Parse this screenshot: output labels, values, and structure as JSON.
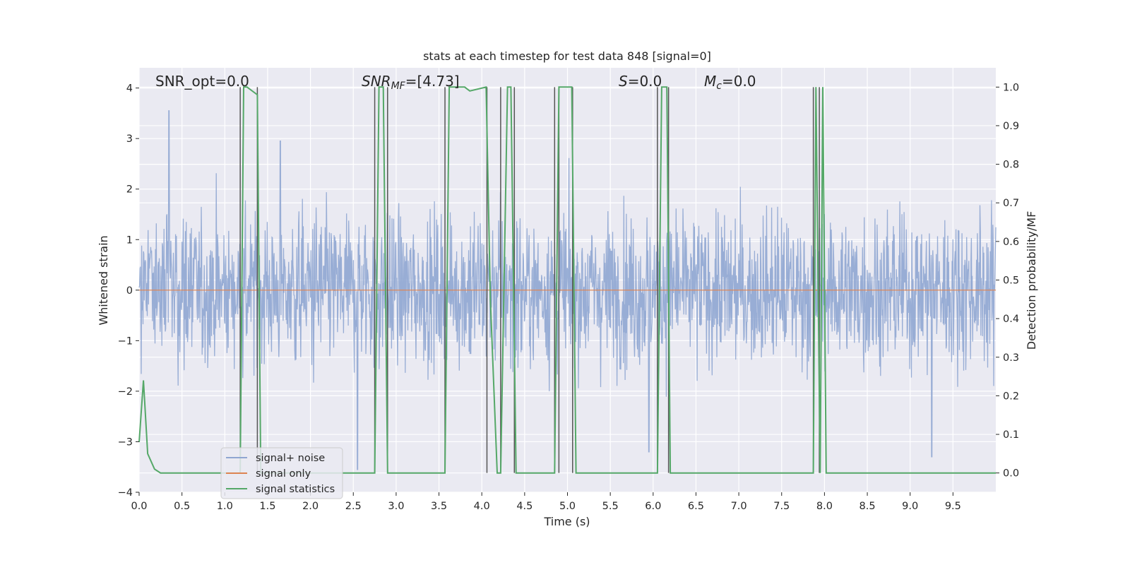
{
  "chart_data": {
    "type": "line",
    "title": "stats at each timestep for test data 848 [signal=0]",
    "xlabel": "Time (s)",
    "ylabel": "Whitened strain",
    "y2label": "Detection probability/MF",
    "xlim": [
      0,
      10
    ],
    "ylim": [
      -4,
      4.4
    ],
    "y2lim": [
      -0.05,
      1.05
    ],
    "xticks": [
      "0.0",
      "0.5",
      "1.0",
      "1.5",
      "2.0",
      "2.5",
      "3.0",
      "3.5",
      "4.0",
      "4.5",
      "5.0",
      "5.5",
      "6.0",
      "6.5",
      "7.0",
      "7.5",
      "8.0",
      "8.5",
      "9.0",
      "9.5"
    ],
    "yticks": [
      "4",
      "3",
      "2",
      "1",
      "0",
      "−1",
      "−2",
      "−3",
      "−4"
    ],
    "y2ticks": [
      "1.0",
      "0.9",
      "0.8",
      "0.7",
      "0.6",
      "0.5",
      "0.4",
      "0.3",
      "0.2",
      "0.1",
      "0.0"
    ],
    "grid": true,
    "legend_position": "lower-left",
    "annotations": {
      "snr_opt": "SNR_opt=0.0",
      "snr_mf_sym": "SNR",
      "snr_mf_sub": "MF",
      "snr_mf_val": "=[4.73]",
      "s_sym": "S",
      "s_val": "=0.0",
      "mc_sym": "M",
      "mc_sub": "c",
      "mc_val": "=0.0"
    },
    "series": [
      {
        "name": "signal+ noise",
        "color": "#8fa6d1",
        "note": "dense noise trace, mostly within ±1.3 with spikes reaching about ±3.5",
        "extremes": [
          [
            0.35,
            3.55
          ],
          [
            5.95,
            -3.2
          ],
          [
            9.25,
            -3.3
          ],
          [
            2.55,
            -3.55
          ],
          [
            1.65,
            2.95
          ]
        ]
      },
      {
        "name": "signal only",
        "color": "#dd8452",
        "x": [
          0,
          10
        ],
        "y": [
          0,
          0
        ]
      },
      {
        "name": "signal statistics",
        "color": "#55a868",
        "axis": "right",
        "x": [
          0.0,
          0.05,
          0.1,
          0.18,
          0.25,
          1.18,
          1.22,
          1.26,
          1.38,
          1.42,
          2.75,
          2.8,
          2.85,
          2.9,
          2.95,
          3.57,
          3.62,
          3.8,
          3.86,
          4.05,
          4.1,
          4.18,
          4.22,
          4.3,
          4.34,
          4.4,
          4.45,
          4.85,
          4.9,
          5.0,
          5.05,
          5.1,
          6.05,
          6.1,
          6.16,
          6.2,
          6.25,
          7.87,
          7.9,
          7.95,
          7.98,
          8.02,
          10.0
        ],
        "y": [
          0.08,
          0.24,
          0.05,
          0.01,
          0.0,
          0.0,
          1.0,
          1.0,
          0.98,
          0.0,
          0.0,
          1.0,
          1.0,
          0.0,
          0.0,
          0.0,
          1.0,
          1.0,
          0.99,
          1.0,
          0.45,
          0.0,
          0.0,
          1.0,
          1.0,
          0.0,
          0.0,
          0.0,
          1.0,
          1.0,
          1.0,
          0.0,
          0.0,
          1.0,
          1.0,
          0.0,
          0.0,
          0.0,
          1.0,
          0.0,
          1.0,
          0.0,
          0.0
        ]
      }
    ],
    "vertical_markers": {
      "color": "#555555",
      "x": [
        1.18,
        1.38,
        2.75,
        2.9,
        3.57,
        4.06,
        4.22,
        4.38,
        4.85,
        4.9,
        5.06,
        6.05,
        6.18,
        7.87,
        7.94
      ]
    }
  }
}
